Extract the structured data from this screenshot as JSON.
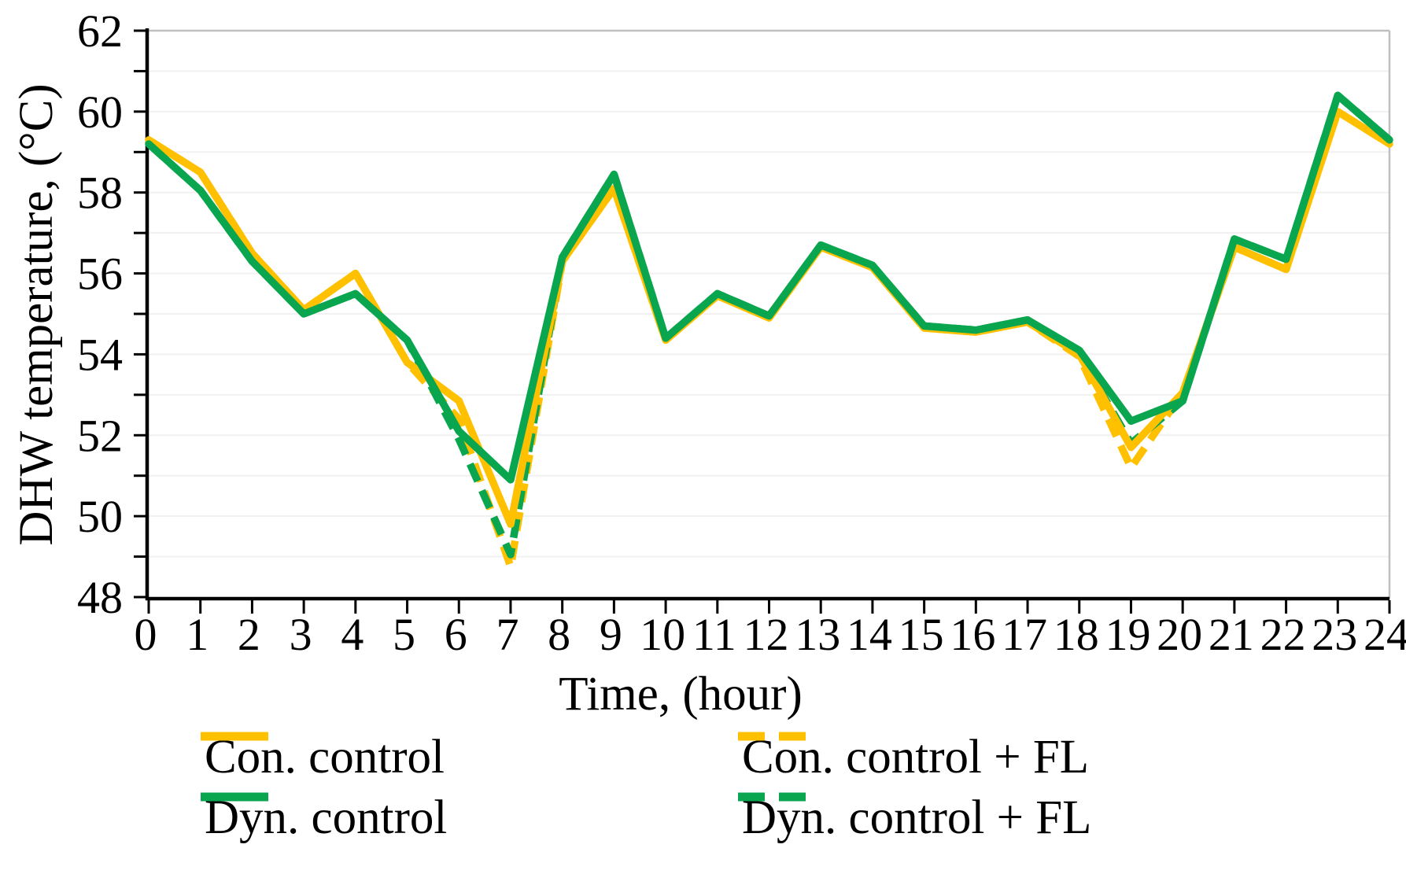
{
  "chart_data": {
    "type": "line",
    "title": "",
    "xlabel": "Time, (hour)",
    "ylabel": "DHW temperature, (°C)",
    "x": [
      0,
      1,
      2,
      3,
      4,
      5,
      6,
      7,
      8,
      9,
      10,
      11,
      12,
      13,
      14,
      15,
      16,
      17,
      18,
      19,
      20,
      21,
      22,
      23,
      24
    ],
    "xlim": [
      0,
      24
    ],
    "ylim": [
      48,
      62
    ],
    "x_tick_step": 1,
    "x_label_step": 1,
    "y_tick_step": 1,
    "y_label_step": 2,
    "grid": true,
    "gridline_step": 1,
    "legend_position": "bottom",
    "axis_color": "#000000",
    "gridline_color": "#F1F1F1",
    "border_color": "#BFBFBF",
    "series": [
      {
        "name": "Con. control",
        "color": "#FFC000",
        "style": "solid",
        "values": [
          59.3,
          58.5,
          56.5,
          55.1,
          56.0,
          53.8,
          52.85,
          49.8,
          56.3,
          58.1,
          54.35,
          55.45,
          54.9,
          56.65,
          56.15,
          54.65,
          54.55,
          54.8,
          54.0,
          51.7,
          53.05,
          56.65,
          56.1,
          60.0,
          59.2
        ]
      },
      {
        "name": "Dyn. control",
        "color": "#0AA64F",
        "style": "solid",
        "values": [
          59.2,
          58.05,
          56.3,
          55.0,
          55.5,
          54.35,
          52.1,
          50.9,
          56.4,
          58.45,
          54.4,
          55.5,
          54.95,
          56.7,
          56.2,
          54.7,
          54.6,
          54.85,
          54.1,
          52.35,
          52.85,
          56.85,
          56.35,
          60.4,
          59.3
        ]
      },
      {
        "name": "Con. control + FL",
        "color": "#FFC000",
        "style": "dashed",
        "values": [
          59.3,
          58.5,
          56.5,
          55.1,
          56.0,
          53.8,
          52.4,
          48.75,
          56.3,
          58.1,
          54.35,
          55.45,
          54.9,
          56.65,
          56.15,
          54.65,
          54.55,
          54.8,
          53.95,
          51.2,
          53.05,
          56.65,
          56.1,
          60.0,
          59.2
        ]
      },
      {
        "name": "Dyn. control + FL",
        "color": "#0AA64F",
        "style": "dashed",
        "values": [
          59.2,
          58.05,
          56.3,
          55.0,
          55.5,
          54.35,
          51.9,
          49.05,
          56.4,
          58.45,
          54.4,
          55.5,
          54.95,
          56.7,
          56.2,
          54.7,
          54.6,
          54.85,
          54.0,
          51.8,
          52.85,
          56.85,
          56.35,
          60.4,
          59.3
        ]
      }
    ]
  }
}
